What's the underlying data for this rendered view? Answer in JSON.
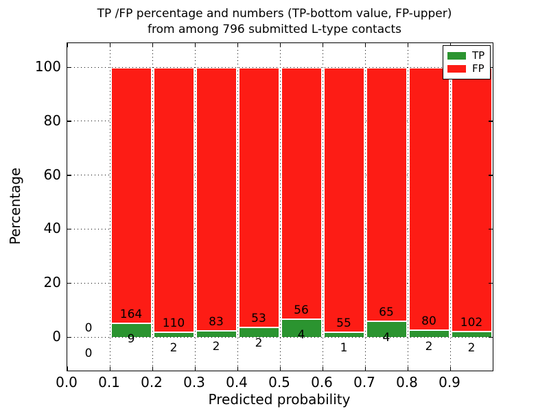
{
  "title": {
    "line1": "TP /FP percentage and numbers (TP-bottom value, FP-upper)",
    "line2": "from among 796 submitted L-type contacts"
  },
  "axes": {
    "x_label": "Predicted probability",
    "y_label": "Percentage",
    "x_tick_labels": [
      "0.0",
      "0.1",
      "0.2",
      "0.3",
      "0.4",
      "0.5",
      "0.6",
      "0.7",
      "0.8",
      "0.9"
    ],
    "x_tick_values": [
      0.0,
      0.1,
      0.2,
      0.3,
      0.4,
      0.5,
      0.6,
      0.7,
      0.8,
      0.9
    ],
    "y_tick_labels": [
      "0",
      "20",
      "40",
      "60",
      "80",
      "100"
    ],
    "y_tick_values": [
      0,
      20,
      40,
      60,
      80,
      100
    ]
  },
  "legend": {
    "items": [
      {
        "label": "TP",
        "color": "#2b9430"
      },
      {
        "label": "FP",
        "color": "#fd1c15"
      }
    ],
    "position": "upper right"
  },
  "colors": {
    "tp_green": "#2b9430",
    "fp_red": "#fd1c15",
    "background": "#ffffff",
    "grid": "#000000",
    "bar_edge": "#ffffff"
  },
  "chart_data": {
    "type": "bar",
    "stacked": true,
    "normalized_to_percent": 100,
    "title": "TP /FP percentage and numbers (TP-bottom value, FP-upper) from among 796 submitted L-type contacts",
    "xlabel": "Predicted probability",
    "ylabel": "Percentage",
    "total_submitted_contacts": 796,
    "bin_edges": [
      0.0,
      0.1,
      0.2,
      0.3,
      0.4,
      0.5,
      0.6,
      0.7,
      0.8,
      0.9,
      1.0
    ],
    "series": [
      {
        "name": "TP",
        "color": "#2b9430",
        "counts": [
          0,
          9,
          2,
          2,
          2,
          4,
          1,
          4,
          2,
          2
        ]
      },
      {
        "name": "FP",
        "color": "#fd1c15",
        "counts": [
          0,
          164,
          110,
          83,
          53,
          56,
          55,
          65,
          80,
          102
        ]
      }
    ],
    "tp_percent_by_bin": [
      0,
      5.2,
      1.79,
      2.35,
      3.64,
      6.67,
      1.79,
      5.8,
      2.44,
      1.92
    ],
    "fp_percent_by_bin": [
      0,
      94.8,
      98.21,
      97.65,
      96.36,
      93.33,
      98.21,
      94.2,
      97.56,
      98.08
    ],
    "xlim": [
      0.0,
      1.0
    ],
    "ylim": [
      -12.5,
      109
    ],
    "x_ticks": [
      0.0,
      0.1,
      0.2,
      0.3,
      0.4,
      0.5,
      0.6,
      0.7,
      0.8,
      0.9
    ],
    "y_ticks": [
      0,
      20,
      40,
      60,
      80,
      100
    ],
    "grid": true,
    "grid_style": "dotted",
    "legend_position": "upper right"
  }
}
